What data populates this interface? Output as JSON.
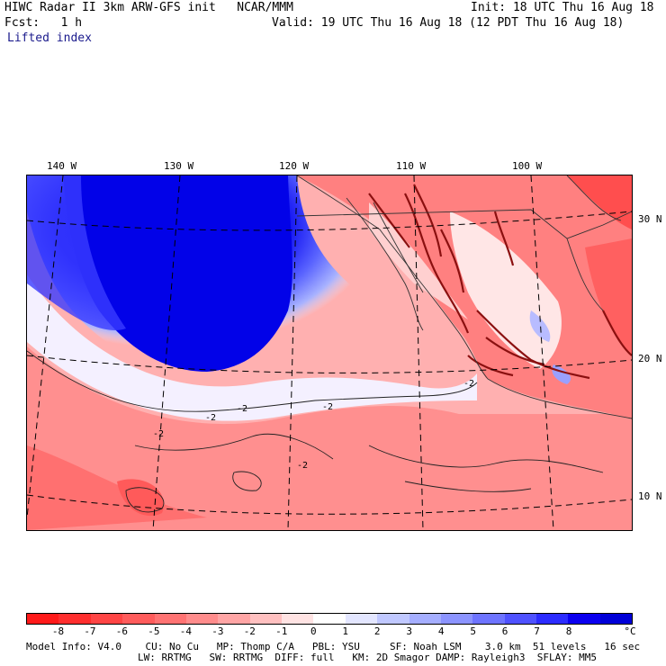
{
  "header": {
    "line1_left": "HIWC Radar II 3km ARW-GFS init   NCAR/MMM",
    "line1_right": "Init: 18 UTC Thu 16 Aug 18",
    "line2_left": "Fcst:   1 h",
    "line2_right": "Valid: 19 UTC Thu 16 Aug 18 (12 PDT Thu 16 Aug 18)",
    "field": "Lifted index"
  },
  "map": {
    "lon_labels": [
      "140 W",
      "130 W",
      "120 W",
      "110 W",
      "100 W"
    ],
    "lat_labels": [
      "30 N",
      "20 N",
      "10 N"
    ],
    "contour_labels": [
      "-2",
      "-2",
      "-2",
      "-2",
      "-2",
      "-2"
    ]
  },
  "colorbar": {
    "ticks": [
      "-8",
      "-7",
      "-6",
      "-5",
      "-4",
      "-3",
      "-2",
      "-1",
      "0",
      "1",
      "2",
      "3",
      "4",
      "5",
      "6",
      "7",
      "8"
    ],
    "unit": "°C",
    "colors": [
      "#ff1a1a",
      "#ff2e2e",
      "#ff4545",
      "#ff5c5c",
      "#ff7373",
      "#ff8c8c",
      "#ffa5a5",
      "#ffc0c0",
      "#ffe3e3",
      "#ffffff",
      "#e3e6ff",
      "#c0c8ff",
      "#a5aeff",
      "#8c94ff",
      "#6e74ff",
      "#4f52ff",
      "#2c2cff",
      "#0b00f0",
      "#0000d8"
    ]
  },
  "footer": {
    "line1": "Model Info: V4.0    CU: No Cu   MP: Thomp C/A   PBL: YSU     SF: Noah LSM    3.0 km  51 levels   16 sec",
    "line2": "LW: RRTMG   SW: RRTMG  DIFF: full   KM: 2D Smagor DAMP: Rayleigh3  SFLAY: MM5"
  }
}
